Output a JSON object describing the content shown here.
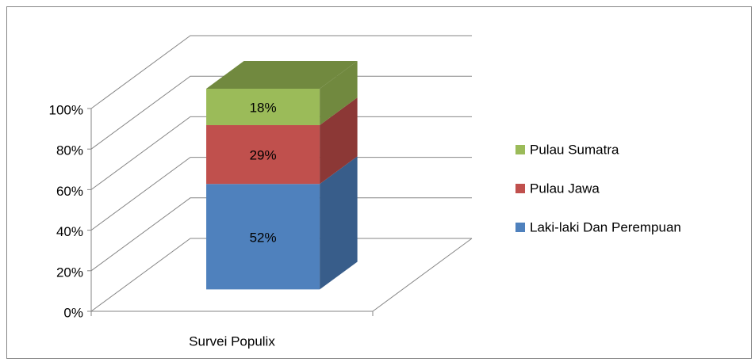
{
  "chart_data": {
    "type": "bar3d_stacked",
    "categories": [
      "Survei Populix"
    ],
    "series": [
      {
        "name": "Laki-laki Dan Perempuan",
        "color": "#4f81bd",
        "side_color": "#385d8a",
        "values": [
          52
        ],
        "value_labels": [
          "52%"
        ]
      },
      {
        "name": "Pulau Jawa",
        "color": "#c0504d",
        "side_color": "#8c3836",
        "values": [
          29
        ],
        "value_labels": [
          "29%"
        ]
      },
      {
        "name": "Pulau Sumatra",
        "color": "#9bbb59",
        "side_color": "#71893f",
        "values": [
          18
        ],
        "value_labels": [
          "18%"
        ]
      }
    ],
    "ylim": [
      0,
      100
    ],
    "yticks": [
      {
        "value": 0,
        "label": "0%"
      },
      {
        "value": 20,
        "label": "20%"
      },
      {
        "value": 40,
        "label": "40%"
      },
      {
        "value": 60,
        "label": "60%"
      },
      {
        "value": 80,
        "label": "80%"
      },
      {
        "value": 100,
        "label": "100%"
      }
    ],
    "grid": true,
    "legend": "right"
  }
}
